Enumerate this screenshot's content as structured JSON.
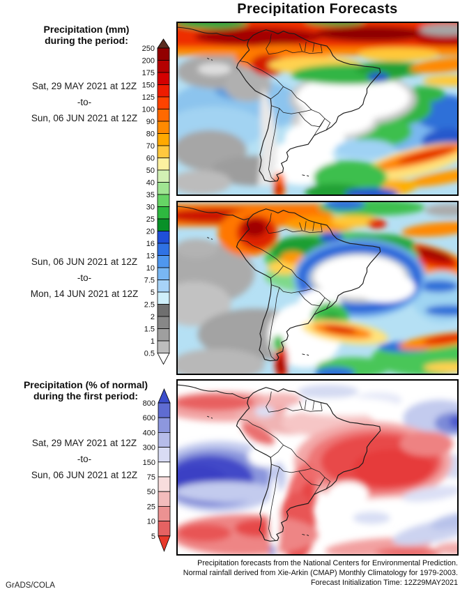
{
  "title": "Precipitation Forecasts",
  "left_column": {
    "mm_header": [
      "Precipitation (mm)",
      "during the period:"
    ],
    "period1": [
      "Sat, 29 MAY 2021 at 12Z",
      "-to-",
      "Sun, 06 JUN 2021 at 12Z"
    ],
    "period2": [
      "Sun, 06 JUN 2021 at 12Z",
      "-to-",
      "Mon, 14 JUN 2021 at 12Z"
    ],
    "pct_header": [
      "Precipitation (% of normal)",
      "during the first period:"
    ],
    "period3": [
      "Sat, 29 MAY 2021 at 12Z",
      "-to-",
      "Sun, 06 JUN 2021 at 12Z"
    ]
  },
  "colorbars": {
    "mm": {
      "ticks": [
        "250",
        "200",
        "175",
        "150",
        "125",
        "100",
        "90",
        "80",
        "70",
        "60",
        "50",
        "40",
        "35",
        "30",
        "25",
        "20",
        "16",
        "13",
        "10",
        "7.5",
        "5",
        "2.5",
        "2",
        "1.5",
        "1",
        "0.5"
      ],
      "segment_colors": [
        "#920000",
        "#b40000",
        "#d40000",
        "#ee1c00",
        "#ff4300",
        "#ff6900",
        "#ff8a00",
        "#ffa900",
        "#ffc83e",
        "#fdf1a0",
        "#d2f0b4",
        "#a0e592",
        "#66d465",
        "#2eb840",
        "#089028",
        "#1f4fd8",
        "#2f72e4",
        "#4f97ee",
        "#79b7f3",
        "#a7d3f8",
        "#cfeffa",
        "#6f6f6f",
        "#878787",
        "#9f9f9f",
        "#bdbdbd"
      ],
      "arrow_top": "#5a2c20",
      "arrow_bottom": "#ffffff"
    },
    "pct": {
      "ticks": [
        "800",
        "600",
        "400",
        "300",
        "150",
        "75",
        "50",
        "25",
        "10",
        "5"
      ],
      "segment_colors": [
        "#5f6cd2",
        "#8d97de",
        "#b6bce9",
        "#d9dcf4",
        "#ffffff",
        "#f8dddd",
        "#f3bcbc",
        "#ec9292",
        "#e56262"
      ],
      "arrow_top": "#3c4ecb",
      "arrow_bottom": "#e8392b"
    }
  },
  "footer": {
    "lines": [
      "Precipitation forecasts from the National Centers for Environmental Prediction.",
      "Normal rainfall derived from Xie-Arkin (CMAP) Monthly Climatology for 1979-2003.",
      "Forecast Initialization Time: 12Z29MAY2021"
    ],
    "credit": "GrADS/COLA"
  },
  "chart_data": [
    {
      "type": "heatmap",
      "panel": 1,
      "title": "Precipitation (mm)",
      "period": "Sat, 29 MAY 2021 at 12Z to Sun, 06 JUN 2021 at 12Z",
      "region": "South America",
      "units": "mm",
      "legend_ticks": [
        250,
        200,
        175,
        150,
        125,
        100,
        90,
        80,
        70,
        60,
        50,
        40,
        35,
        30,
        25,
        20,
        16,
        13,
        10,
        7.5,
        5,
        2.5,
        2,
        1.5,
        1,
        0.5
      ]
    },
    {
      "type": "heatmap",
      "panel": 2,
      "title": "Precipitation (mm)",
      "period": "Sun, 06 JUN 2021 at 12Z to Mon, 14 JUN 2021 at 12Z",
      "region": "South America",
      "units": "mm",
      "legend_ticks": [
        250,
        200,
        175,
        150,
        125,
        100,
        90,
        80,
        70,
        60,
        50,
        40,
        35,
        30,
        25,
        20,
        16,
        13,
        10,
        7.5,
        5,
        2.5,
        2,
        1.5,
        1,
        0.5
      ]
    },
    {
      "type": "heatmap",
      "panel": 3,
      "title": "Precipitation (% of normal)",
      "period": "Sat, 29 MAY 2021 at 12Z to Sun, 06 JUN 2021 at 12Z",
      "region": "South America",
      "units": "% of normal",
      "legend_ticks": [
        800,
        600,
        400,
        300,
        150,
        75,
        50,
        25,
        10,
        5
      ]
    }
  ]
}
